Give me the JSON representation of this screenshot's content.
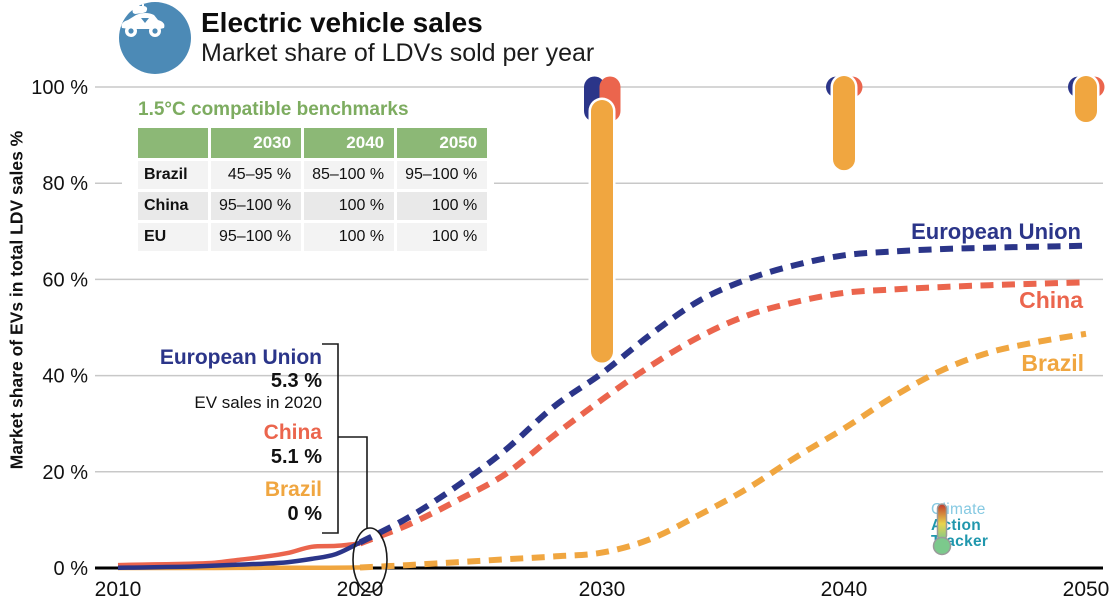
{
  "header": {
    "title": "Electric vehicle sales",
    "subtitle": "Market share of LDVs sold per year"
  },
  "benchmarks": {
    "title": "1.5°C compatible benchmarks",
    "columns": [
      "2030",
      "2040",
      "2050"
    ],
    "rows": [
      {
        "label": "Brazil",
        "values": [
          "45–95 %",
          "85–100 %",
          "95–100 %"
        ]
      },
      {
        "label": "China",
        "values": [
          "95–100 %",
          "100 %",
          "100 %"
        ]
      },
      {
        "label": "EU",
        "values": [
          "95–100 %",
          "100 %",
          "100 %"
        ]
      }
    ]
  },
  "callout": {
    "eu_label": "European Union",
    "eu_value": "5.3 %",
    "note": "EV sales in 2020",
    "china_label": "China",
    "china_value": "5.1 %",
    "brazil_label": "Brazil",
    "brazil_value": "0 %"
  },
  "line_labels": {
    "eu": "European Union",
    "china": "China",
    "brazil": "Brazil"
  },
  "logo": {
    "line1": "Climate",
    "line2": "Action",
    "line3": "Tracker"
  },
  "colors": {
    "eu": "#2b3589",
    "china": "#eb654d",
    "brazil": "#f0a640",
    "green": "#8cb876",
    "icon_blue": "#4c8ab6",
    "grid": "#c8c8c8",
    "axis": "#000000",
    "logo_light_blue": "#85c9e2",
    "logo_teal": "#2097ad"
  },
  "chart_data": {
    "type": "line",
    "title": "Electric vehicle sales — Market share of LDVs sold per year",
    "xlabel": "",
    "ylabel": "Market share of EVs in total LDV sales %",
    "xlim": [
      2010,
      2050
    ],
    "ylim": [
      0,
      100
    ],
    "x_ticks": [
      2010,
      2020,
      2030,
      2040,
      2050
    ],
    "x_tick_labels": [
      "2010",
      "2020",
      "2030",
      "2040",
      "2050"
    ],
    "y_ticks": [
      0,
      20,
      40,
      60,
      80,
      100
    ],
    "y_tick_labels": [
      "0 %",
      "20 %",
      "40 %",
      "60 %",
      "80 %",
      "100 %"
    ],
    "grid": true,
    "legend_position": "line-ends",
    "series": [
      {
        "id": "brazil",
        "name": "Brazil",
        "color": "#f0a640",
        "line_style": "solid 2010-2020, dashed 2020-2050",
        "historical": [
          [
            2010,
            0
          ],
          [
            2012,
            0
          ],
          [
            2014,
            0
          ],
          [
            2016,
            0.05
          ],
          [
            2018,
            0.05
          ],
          [
            2020,
            0.1
          ]
        ],
        "projection": [
          [
            2020,
            0.1
          ],
          [
            2022,
            0.6
          ],
          [
            2024,
            1.2
          ],
          [
            2026,
            1.8
          ],
          [
            2028,
            2.4
          ],
          [
            2030,
            3.2
          ],
          [
            2032,
            6
          ],
          [
            2034,
            11
          ],
          [
            2036,
            16.5
          ],
          [
            2038,
            23
          ],
          [
            2040,
            29
          ],
          [
            2042,
            35.5
          ],
          [
            2044,
            41
          ],
          [
            2046,
            44.8
          ],
          [
            2048,
            47
          ],
          [
            2050,
            48.7
          ]
        ]
      },
      {
        "id": "china",
        "name": "China",
        "color": "#eb654d",
        "line_style": "solid 2010-2020, dashed 2020-2050",
        "historical": [
          [
            2010,
            0.6
          ],
          [
            2011,
            0.7
          ],
          [
            2012,
            0.8
          ],
          [
            2013,
            0.9
          ],
          [
            2014,
            1.1
          ],
          [
            2015,
            1.7
          ],
          [
            2016,
            2.3
          ],
          [
            2017,
            3.1
          ],
          [
            2018,
            4.4
          ],
          [
            2019,
            4.6
          ],
          [
            2020,
            5.1
          ]
        ],
        "projection": [
          [
            2020,
            5.1
          ],
          [
            2022,
            9
          ],
          [
            2024,
            14
          ],
          [
            2026,
            19.5
          ],
          [
            2028,
            27.5
          ],
          [
            2030,
            35
          ],
          [
            2032,
            42
          ],
          [
            2034,
            48
          ],
          [
            2036,
            52.5
          ],
          [
            2038,
            55.3
          ],
          [
            2040,
            57.2
          ],
          [
            2042,
            57.9
          ],
          [
            2044,
            58.4
          ],
          [
            2046,
            58.8
          ],
          [
            2048,
            59.1
          ],
          [
            2050,
            59.4
          ]
        ]
      },
      {
        "id": "eu",
        "name": "European Union",
        "color": "#2b3589",
        "line_style": "solid 2010-2020, dashed 2020-2050",
        "historical": [
          [
            2010,
            0.05
          ],
          [
            2011,
            0.1
          ],
          [
            2012,
            0.2
          ],
          [
            2013,
            0.3
          ],
          [
            2014,
            0.5
          ],
          [
            2015,
            0.7
          ],
          [
            2016,
            0.9
          ],
          [
            2017,
            1.2
          ],
          [
            2018,
            1.9
          ],
          [
            2019,
            2.9
          ],
          [
            2020,
            5.3
          ]
        ],
        "projection": [
          [
            2020,
            5.3
          ],
          [
            2022,
            10.5
          ],
          [
            2024,
            17
          ],
          [
            2026,
            24.5
          ],
          [
            2028,
            33.5
          ],
          [
            2030,
            40.5
          ],
          [
            2032,
            48.5
          ],
          [
            2034,
            55.5
          ],
          [
            2036,
            60
          ],
          [
            2038,
            63
          ],
          [
            2040,
            65
          ],
          [
            2042,
            65.8
          ],
          [
            2044,
            66.3
          ],
          [
            2046,
            66.6
          ],
          [
            2048,
            66.8
          ],
          [
            2050,
            67
          ]
        ]
      }
    ],
    "benchmarks": [
      {
        "year": 2030,
        "entries": [
          {
            "name": "EU",
            "range": [
              95,
              100
            ]
          },
          {
            "name": "China",
            "range": [
              95,
              100
            ]
          },
          {
            "name": "Brazil",
            "range": [
              45,
              95
            ]
          }
        ]
      },
      {
        "year": 2040,
        "entries": [
          {
            "name": "EU",
            "range": [
              100,
              100
            ]
          },
          {
            "name": "China",
            "range": [
              100,
              100
            ]
          },
          {
            "name": "Brazil",
            "range": [
              85,
              100
            ]
          }
        ]
      },
      {
        "year": 2050,
        "entries": [
          {
            "name": "EU",
            "range": [
              100,
              100
            ]
          },
          {
            "name": "China",
            "range": [
              100,
              100
            ]
          },
          {
            "name": "Brazil",
            "range": [
              95,
              100
            ]
          }
        ]
      }
    ],
    "annotations": {
      "eu_2020": "European Union 5.3 % EV sales in 2020",
      "china_2020": "China 5.1 %",
      "brazil_2020": "Brazil 0 %"
    }
  }
}
